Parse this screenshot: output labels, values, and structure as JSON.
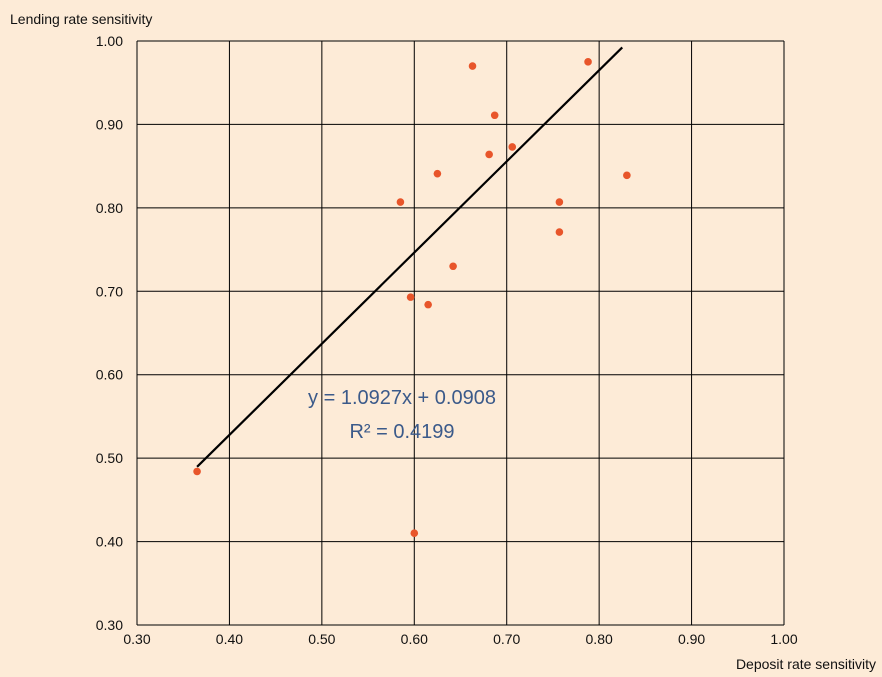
{
  "colors": {
    "background": "#fdebd7",
    "grid": "#000000",
    "point": "#e8552a",
    "trendline": "#000000",
    "equation": "#3b5a8a"
  },
  "chart_data": {
    "type": "scatter",
    "ylabel": "Lending rate sensitivity",
    "xlabel": "Deposit rate sensitivity",
    "xlim": [
      0.3,
      1.0
    ],
    "ylim": [
      0.3,
      1.0
    ],
    "x_ticks": [
      "0.30",
      "0.40",
      "0.50",
      "0.60",
      "0.70",
      "0.80",
      "0.90",
      "1.00"
    ],
    "y_ticks": [
      "0.30",
      "0.40",
      "0.50",
      "0.60",
      "0.70",
      "0.80",
      "0.90",
      "1.00"
    ],
    "grid": true,
    "points": [
      {
        "x": 0.365,
        "y": 0.484
      },
      {
        "x": 0.585,
        "y": 0.807
      },
      {
        "x": 0.596,
        "y": 0.693
      },
      {
        "x": 0.6,
        "y": 0.41
      },
      {
        "x": 0.615,
        "y": 0.684
      },
      {
        "x": 0.625,
        "y": 0.841
      },
      {
        "x": 0.642,
        "y": 0.73
      },
      {
        "x": 0.663,
        "y": 0.97
      },
      {
        "x": 0.681,
        "y": 0.864
      },
      {
        "x": 0.687,
        "y": 0.911
      },
      {
        "x": 0.706,
        "y": 0.873
      },
      {
        "x": 0.757,
        "y": 0.807
      },
      {
        "x": 0.757,
        "y": 0.771
      },
      {
        "x": 0.788,
        "y": 0.975
      },
      {
        "x": 0.83,
        "y": 0.839
      }
    ],
    "trendline": {
      "slope": 1.0927,
      "intercept": 0.0908,
      "x_range": [
        0.365,
        0.825
      ]
    },
    "equation_label": "y = 1.0927x + 0.0908",
    "r2_label": "R² = 0.4199"
  }
}
